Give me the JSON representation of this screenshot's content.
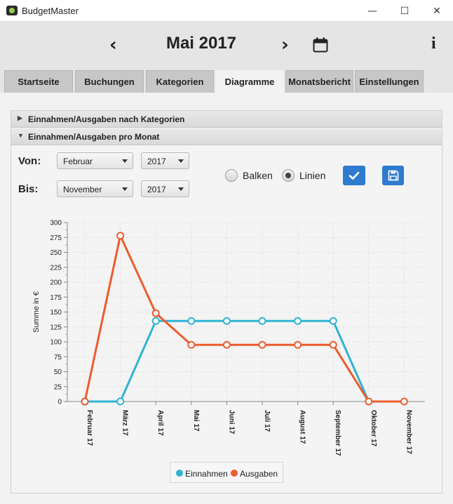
{
  "window": {
    "title": "BudgetMaster",
    "minimize_glyph": "—",
    "maximize_glyph": "☐",
    "close_glyph": "✕"
  },
  "header": {
    "month_title": "Mai 2017",
    "prev_glyph": "‹",
    "next_glyph": "›",
    "info_glyph": "i",
    "calendar_icon": "calendar-icon"
  },
  "tabs": [
    {
      "label": "Startseite",
      "active": false
    },
    {
      "label": "Buchungen",
      "active": false
    },
    {
      "label": "Kategorien",
      "active": false
    },
    {
      "label": "Diagramme",
      "active": true
    },
    {
      "label": "Monatsbericht",
      "active": false
    },
    {
      "label": "Einstellungen",
      "active": false
    }
  ],
  "accordion": [
    {
      "title": "Einnahmen/Ausgaben nach Kategorien",
      "expanded": false
    },
    {
      "title": "Einnahmen/Ausgaben pro Monat",
      "expanded": true
    }
  ],
  "filters": {
    "from_label": "Von:",
    "to_label": "Bis:",
    "from_month": "Februar",
    "from_year": "2017",
    "to_month": "November",
    "to_year": "2017"
  },
  "chart_type": {
    "bar_label": "Balken",
    "line_label": "Linien",
    "selected": "Linien"
  },
  "buttons": {
    "apply_icon": "checkmark-icon",
    "save_icon": "save-icon"
  },
  "colors": {
    "accent": "#2e7bcf",
    "income": "#2fb4d4",
    "expense": "#ec5c2e"
  },
  "chart_data": {
    "type": "line",
    "ylabel": "Summe in €",
    "xlabel": "",
    "ylim": [
      0,
      300
    ],
    "y_ticks": [
      0,
      25,
      50,
      75,
      100,
      125,
      150,
      175,
      200,
      225,
      250,
      275,
      300
    ],
    "categories": [
      "Februar 17",
      "März 17",
      "April 17",
      "Mai 17",
      "Juni 17",
      "Juli 17",
      "August 17",
      "September 17",
      "Oktober 17",
      "November 17"
    ],
    "series": [
      {
        "name": "Einnahmen",
        "color": "#2fb4d4",
        "values": [
          0,
          0,
          135,
          135,
          135,
          135,
          135,
          135,
          0,
          null
        ]
      },
      {
        "name": "Ausgaben",
        "color": "#ec5c2e",
        "values": [
          0,
          278,
          148,
          95,
          95,
          95,
          95,
          95,
          0,
          0
        ]
      }
    ],
    "grid": true,
    "legend": "bottom"
  }
}
